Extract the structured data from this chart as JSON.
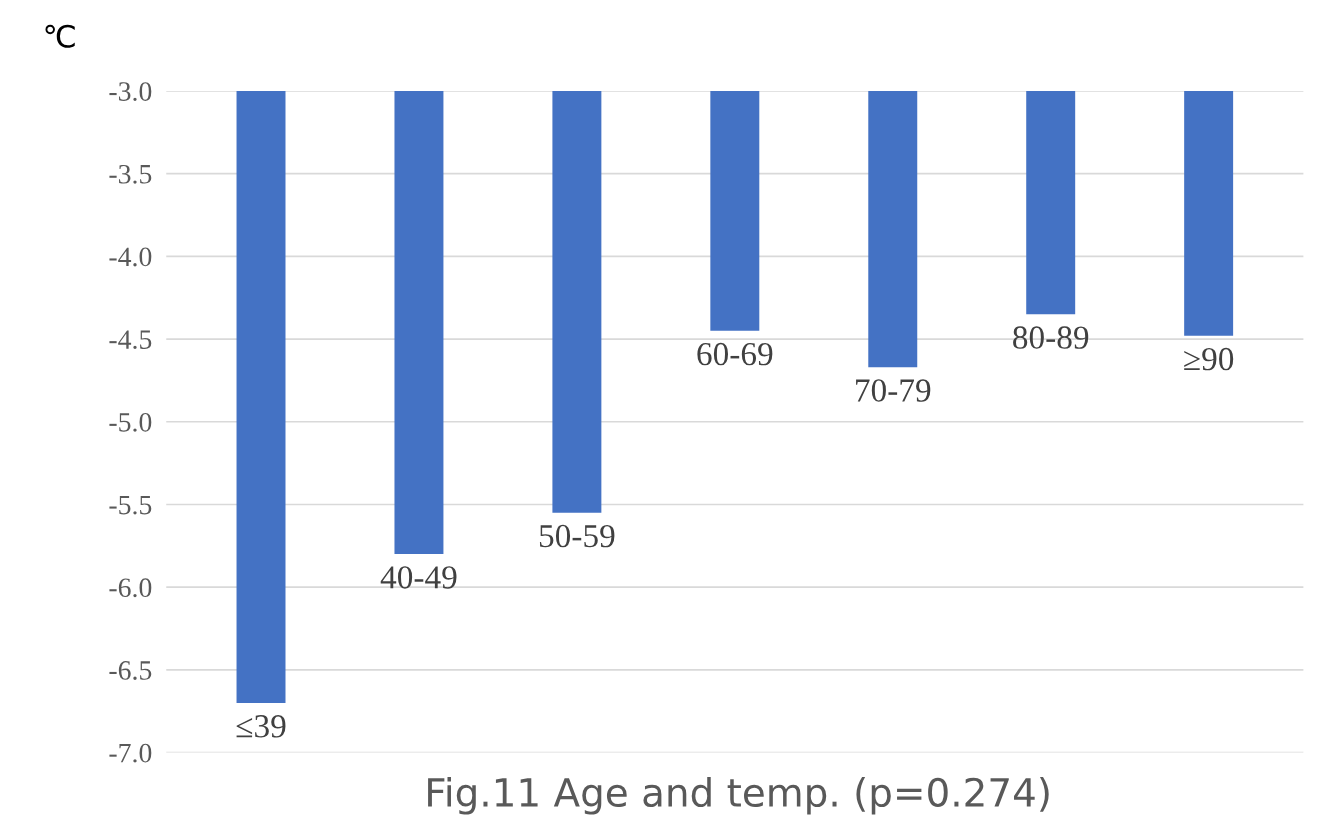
{
  "chart_data": {
    "type": "bar",
    "title": "Fig.11 Age and temp. (p=0.274)",
    "ylabel": "℃",
    "categories": [
      "≤39",
      "40-49",
      "50-59",
      "60-69",
      "70-79",
      "80-89",
      "≥90"
    ],
    "values": [
      -6.7,
      -5.8,
      -5.55,
      -4.45,
      -4.67,
      -4.35,
      -4.48
    ],
    "color": "#4472c4",
    "ylim": [
      -7.0,
      -3.0
    ],
    "yticks": [
      {
        "value": -7.0,
        "label": "-7.0"
      },
      {
        "value": -6.5,
        "label": "-6.5"
      },
      {
        "value": -6.0,
        "label": "-6.0"
      },
      {
        "value": -5.5,
        "label": "-5.5"
      },
      {
        "value": -5.0,
        "label": "-5.0"
      },
      {
        "value": -4.5,
        "label": "-4.5"
      },
      {
        "value": -4.0,
        "label": "-4.0"
      },
      {
        "value": -3.5,
        "label": "-3.5"
      },
      {
        "value": -3.0,
        "label": "-3.0"
      }
    ],
    "grid": "y",
    "tick_labels": "y"
  }
}
